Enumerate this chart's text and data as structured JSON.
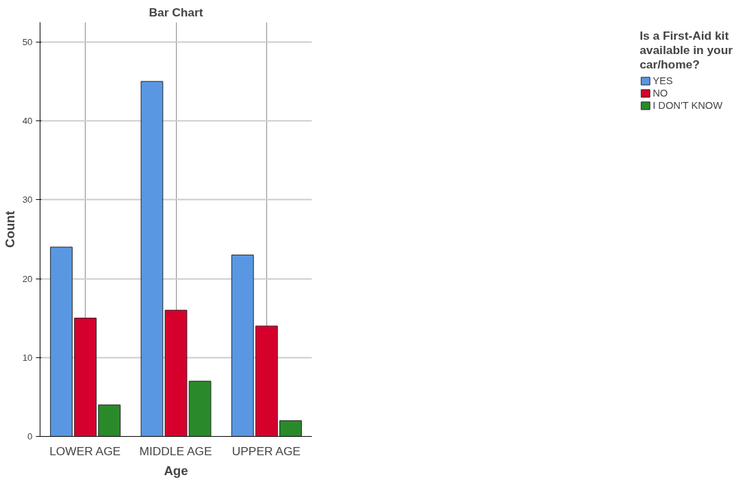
{
  "chart_data": {
    "type": "bar",
    "title": "Bar Chart",
    "xlabel": "Age",
    "ylabel": "Count",
    "categories": [
      "LOWER AGE",
      "MIDDLE AGE",
      "UPPER AGE"
    ],
    "series": [
      {
        "name": "YES",
        "color": "#5a97e3",
        "values": [
          24,
          45,
          23
        ]
      },
      {
        "name": "NO",
        "color": "#d6002d",
        "values": [
          15,
          16,
          14
        ]
      },
      {
        "name": "I DON'T KNOW",
        "color": "#2a8a2a",
        "values": [
          4,
          7,
          2
        ]
      }
    ],
    "legend_title": "Is a First-Aid kit available in your car/home?",
    "ylim": [
      0,
      52.5
    ],
    "yticks": [
      0,
      10,
      20,
      30,
      40,
      50
    ],
    "grid": true,
    "legend": "right"
  }
}
